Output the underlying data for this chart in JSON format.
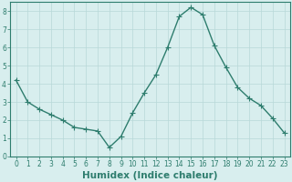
{
  "x": [
    0,
    1,
    2,
    3,
    4,
    5,
    6,
    7,
    8,
    9,
    10,
    11,
    12,
    13,
    14,
    15,
    16,
    17,
    18,
    19,
    20,
    21,
    22,
    23
  ],
  "y": [
    4.2,
    3.0,
    2.6,
    2.3,
    2.0,
    1.6,
    1.5,
    1.4,
    0.5,
    1.1,
    2.4,
    3.5,
    4.5,
    6.0,
    7.7,
    8.2,
    7.8,
    6.1,
    4.9,
    3.8,
    3.2,
    2.8,
    2.1,
    1.3
  ],
  "line_color": "#2e7d6e",
  "marker": "+",
  "marker_size": 4,
  "bg_color": "#d8eeee",
  "grid_color": "#b8d8d8",
  "xlabel": "Humidex (Indice chaleur)",
  "ylim": [
    0,
    8.5
  ],
  "xlim": [
    -0.5,
    23.5
  ],
  "yticks": [
    0,
    1,
    2,
    3,
    4,
    5,
    6,
    7,
    8
  ],
  "xticks": [
    0,
    1,
    2,
    3,
    4,
    5,
    6,
    7,
    8,
    9,
    10,
    11,
    12,
    13,
    14,
    15,
    16,
    17,
    18,
    19,
    20,
    21,
    22,
    23
  ],
  "tick_label_size": 5.5,
  "xlabel_size": 7.5,
  "line_width": 1.0,
  "marker_edge_width": 0.8
}
